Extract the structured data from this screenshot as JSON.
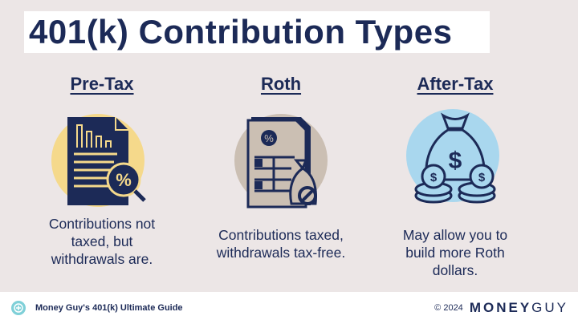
{
  "title": "401(k) Contribution Types",
  "columns": [
    {
      "heading": "Pre-Tax",
      "description": "Contributions not taxed, but withdrawals are.",
      "icon": "document-percent-magnifier-icon",
      "circle_color": "#f5d98b"
    },
    {
      "heading": "Roth",
      "description": "Contributions taxed, withdrawals tax-free.",
      "icon": "document-money-bag-no-tax-icon",
      "circle_color": "#cbbfb3"
    },
    {
      "heading": "After-Tax",
      "description": "May allow you to build more Roth dollars.",
      "icon": "money-bag-coins-icon",
      "circle_color": "#a9d7ee"
    }
  ],
  "footer": {
    "guide": "Money Guy's 401(k) Ultimate Guide",
    "copyright": "© 2024",
    "brand_money": "MONEY",
    "brand_guy": "GUY"
  },
  "colors": {
    "navy": "#1c2a57",
    "background": "#ece6e6"
  }
}
